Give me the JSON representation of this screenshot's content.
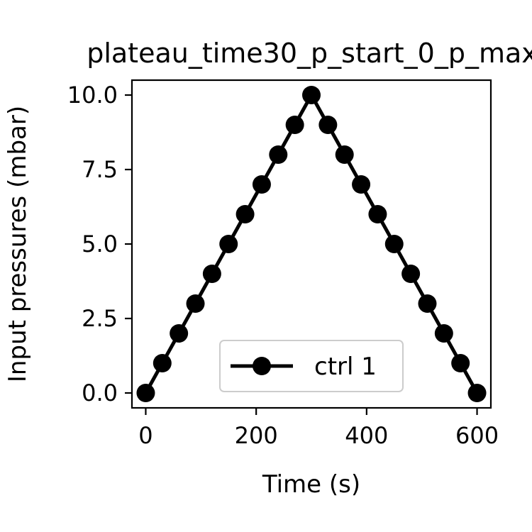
{
  "chart_data": {
    "type": "line",
    "title": "plateau_time30_p_start_0_p_max",
    "xlabel": "Time (s)",
    "ylabel": "Input pressures (mbar)",
    "xlim": [
      -25,
      625
    ],
    "ylim": [
      -0.5,
      10.5
    ],
    "xticks": [
      0,
      200,
      400,
      600
    ],
    "xtick_labels": [
      "0",
      "200",
      "400",
      "600"
    ],
    "yticks": [
      0,
      2.5,
      5,
      7.5,
      10
    ],
    "ytick_labels": [
      "0.0",
      "2.5",
      "5.0",
      "7.5",
      "10.0"
    ],
    "grid": false,
    "legend_position": "lower center",
    "series": [
      {
        "name": "ctrl 1",
        "color": "#000000",
        "marker": "circle",
        "x": [
          0,
          30,
          60,
          90,
          120,
          150,
          180,
          210,
          240,
          270,
          300,
          330,
          360,
          390,
          420,
          450,
          480,
          510,
          540,
          570,
          600
        ],
        "y": [
          0,
          1,
          2,
          3,
          4,
          5,
          6,
          7,
          8,
          9,
          10,
          9,
          8,
          7,
          6,
          5,
          4,
          3,
          2,
          1,
          0
        ]
      }
    ]
  }
}
